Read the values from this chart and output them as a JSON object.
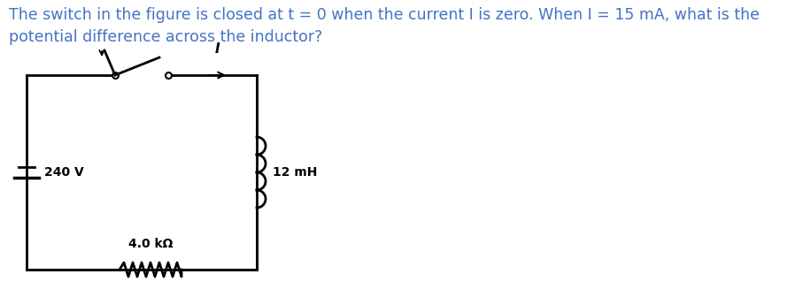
{
  "text_line1": "The switch in the figure is closed at t = 0 when the current I is zero. When I = 15 mA, what is the",
  "text_line2": "potential difference across the inductor?",
  "text_color": "#4472c4",
  "circuit_color": "#000000",
  "bg_color": "#ffffff",
  "voltage_label": "240 V",
  "resistor_label": "4.0 kΩ",
  "inductor_label": "12 mH",
  "current_label": "I",
  "font_size_text": 12.5,
  "font_size_labels": 10
}
